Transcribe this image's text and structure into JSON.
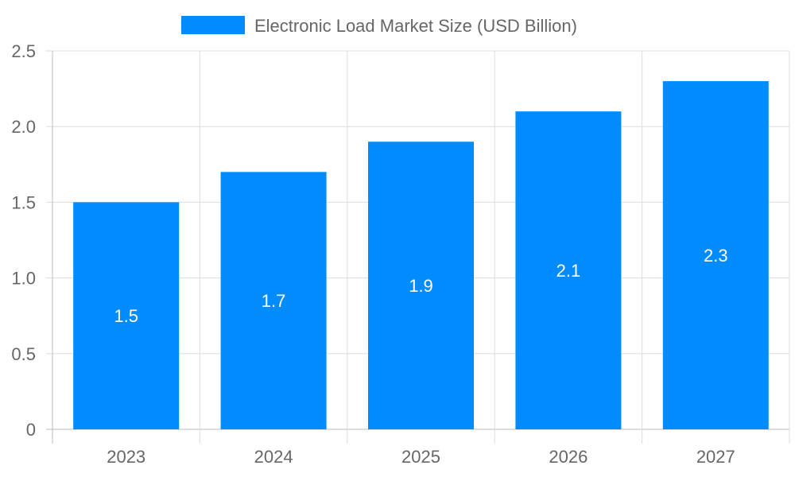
{
  "chart_data": {
    "type": "bar",
    "categories": [
      "2023",
      "2024",
      "2025",
      "2026",
      "2027"
    ],
    "series": [
      {
        "name": "Electronic Load Market Size (USD Billion)",
        "values": [
          1.5,
          1.7,
          1.9,
          2.1,
          2.3
        ],
        "color": "#008cff"
      }
    ],
    "data_labels": [
      "1.5",
      "1.7",
      "1.9",
      "2.1",
      "2.3"
    ],
    "title": "",
    "xlabel": "",
    "ylabel": "",
    "ylim": [
      0,
      2.5
    ],
    "yticks": [
      "0",
      "0.5",
      "1.0",
      "1.5",
      "2.0",
      "2.5"
    ],
    "grid": true,
    "legend_position": "top"
  }
}
